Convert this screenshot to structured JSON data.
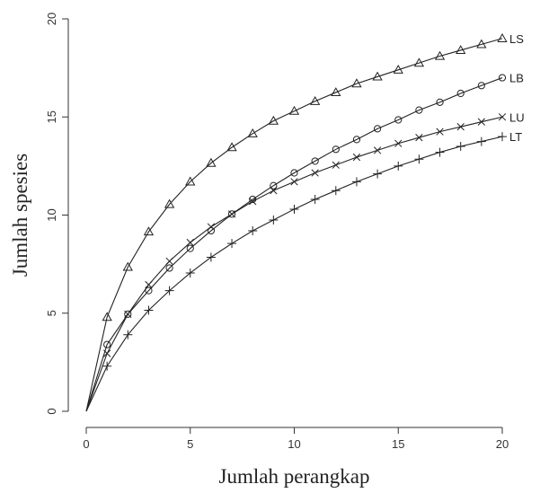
{
  "chart_data": {
    "type": "line",
    "xlabel": "Jumlah perangkap",
    "ylabel": "Jumlah spesies",
    "xlim": [
      0,
      20
    ],
    "ylim": [
      0,
      20
    ],
    "xticks": [
      "0",
      "5",
      "10",
      "15",
      "20"
    ],
    "yticks": [
      "0",
      "5",
      "10",
      "15",
      "20"
    ],
    "grid": false,
    "legend": "none",
    "x": [
      0,
      1,
      2,
      3,
      4,
      5,
      6,
      7,
      8,
      9,
      10,
      11,
      12,
      13,
      14,
      15,
      16,
      17,
      18,
      19,
      20
    ],
    "series": [
      {
        "name": "LS",
        "marker": "triangle",
        "values": [
          0,
          4.8,
          7.35,
          9.15,
          10.55,
          11.7,
          12.65,
          13.45,
          14.15,
          14.8,
          15.3,
          15.8,
          16.25,
          16.7,
          17.05,
          17.4,
          17.75,
          18.1,
          18.4,
          18.7,
          19.0
        ]
      },
      {
        "name": "LB",
        "marker": "circle",
        "values": [
          0,
          3.4,
          4.95,
          6.15,
          7.3,
          8.3,
          9.2,
          10.05,
          10.8,
          11.5,
          12.15,
          12.75,
          13.35,
          13.85,
          14.4,
          14.85,
          15.35,
          15.75,
          16.2,
          16.6,
          17.0
        ]
      },
      {
        "name": "LU",
        "marker": "x",
        "values": [
          0,
          2.95,
          4.95,
          6.45,
          7.65,
          8.6,
          9.4,
          10.05,
          10.7,
          11.25,
          11.7,
          12.15,
          12.55,
          12.95,
          13.3,
          13.65,
          13.95,
          14.25,
          14.5,
          14.75,
          15.0
        ]
      },
      {
        "name": "LT",
        "marker": "plus",
        "values": [
          0,
          2.3,
          3.9,
          5.15,
          6.15,
          7.05,
          7.85,
          8.55,
          9.2,
          9.75,
          10.3,
          10.8,
          11.25,
          11.7,
          12.1,
          12.5,
          12.85,
          13.2,
          13.5,
          13.75,
          14.0
        ]
      }
    ]
  }
}
